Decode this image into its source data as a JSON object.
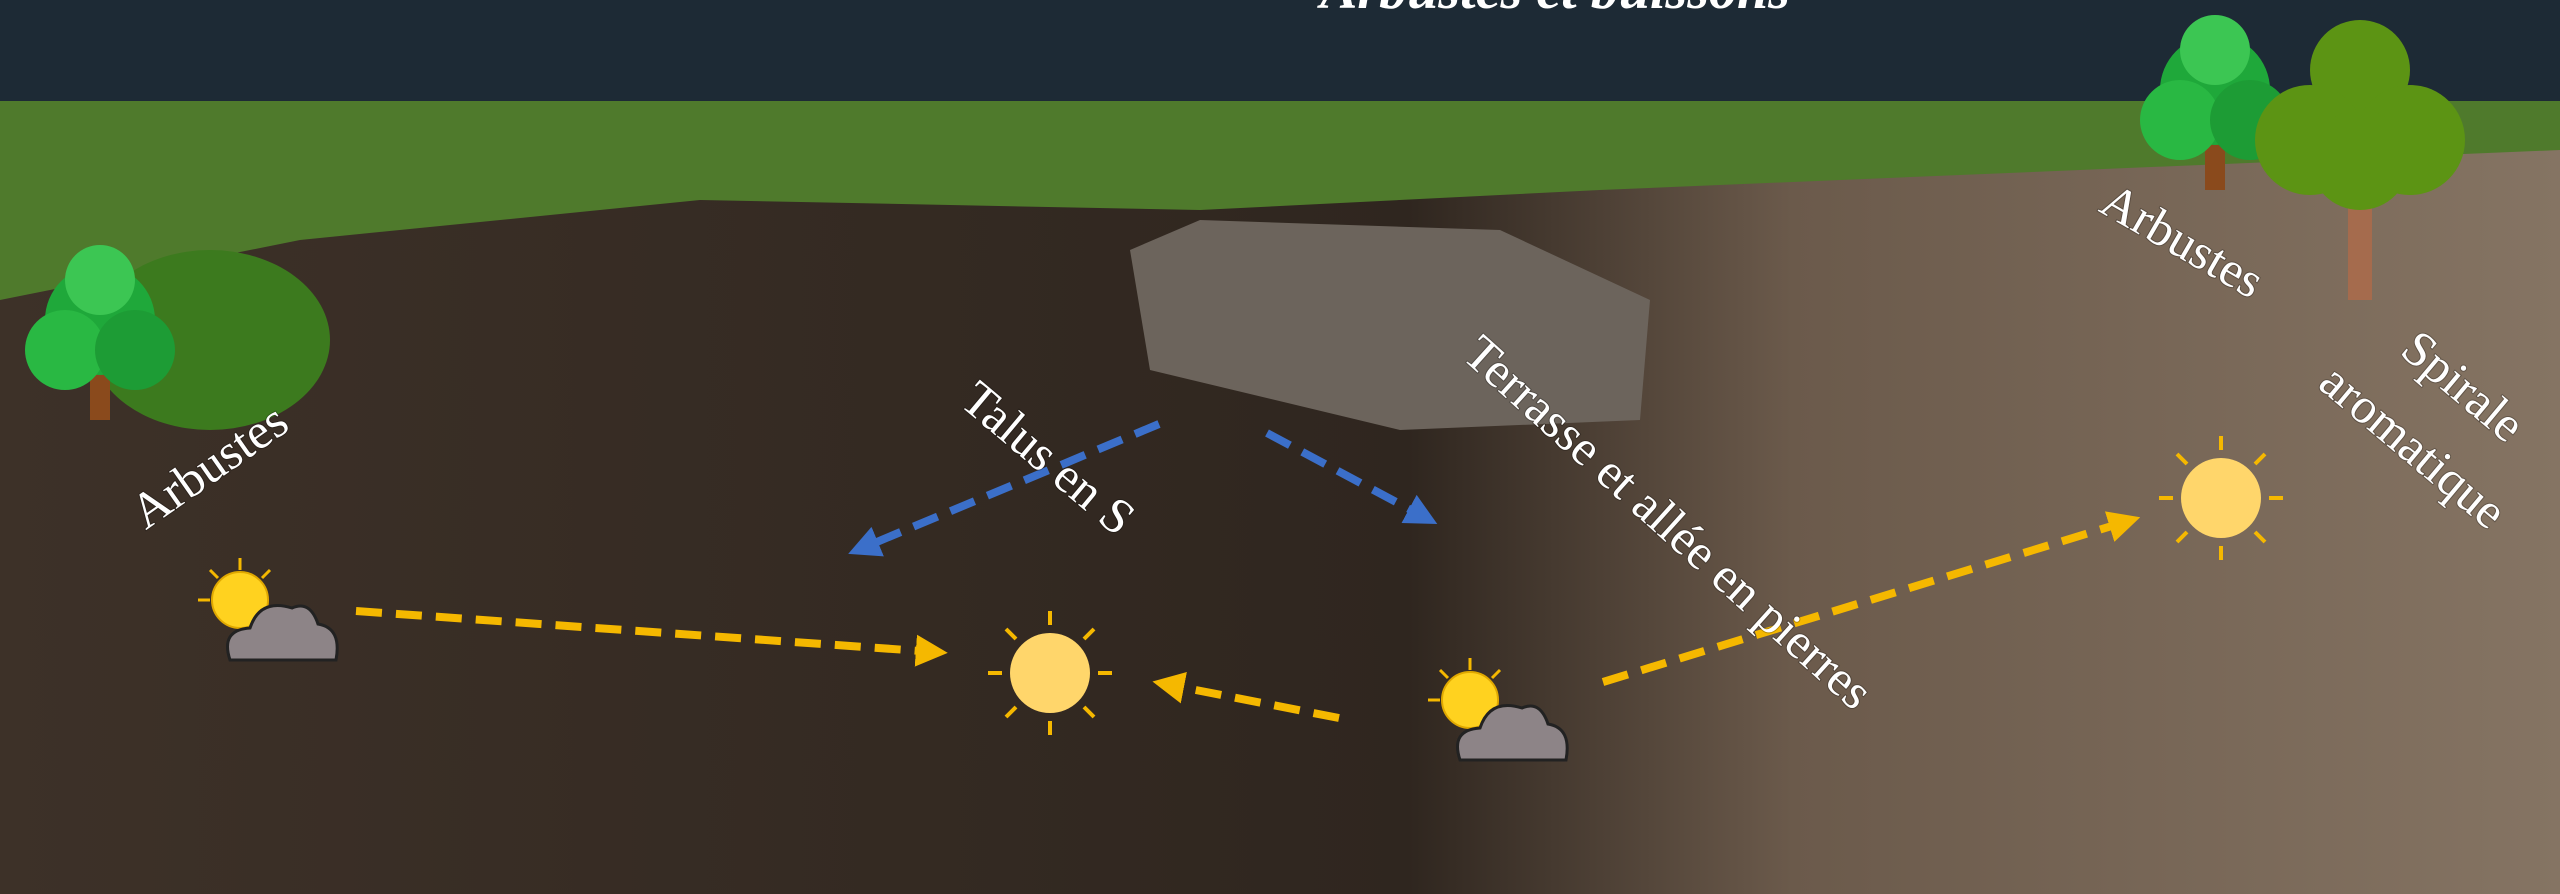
{
  "header": {
    "title": "Arbustes et buissons"
  },
  "labels": [
    "Arbustes",
    "Talus en S",
    "Terrasse et allée en pierres",
    "Arbustes",
    "Spirale",
    "aromatique"
  ]
}
